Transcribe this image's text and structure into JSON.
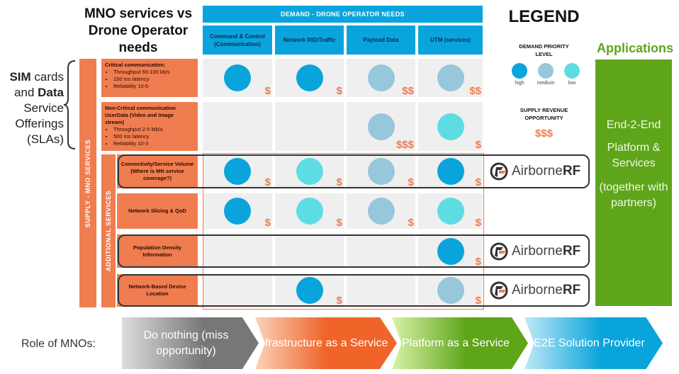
{
  "title": "MNO services vs Drone Operator needs",
  "demand_header": "DEMAND - DRONE OPERATOR NEEDS",
  "columns": [
    "Command & Control (Communication)",
    "Network RID/Traffic",
    "Payload Data",
    "UTM (services)"
  ],
  "left_label": {
    "line1_bold": "SIM",
    "line1": " cards",
    "line2": "and ",
    "line2_bold": "Data",
    "line3": "Service Offerings (SLAs)"
  },
  "supply_label": "SUPPLY - MNO SERVICES",
  "additional_label": "ADDITIONAL SERVICES",
  "rows": [
    {
      "title": "Critical communication:",
      "bullets": [
        "Throughput 50-100 kb/s",
        "150 ms latency",
        "Reliability 10-5"
      ],
      "cells": [
        {
          "p": "high",
          "d": "$"
        },
        {
          "p": "high",
          "d": "$"
        },
        {
          "p": "medium",
          "d": "$$"
        },
        {
          "p": "medium",
          "d": "$$"
        }
      ]
    },
    {
      "title": "Non-Critical communication UserData (Video and Image stream)",
      "bullets": [
        "Throughput 2-5 Mb/s",
        "500 ms latency",
        "Reliability 10-3"
      ],
      "cells": [
        null,
        null,
        {
          "p": "medium",
          "d": "$$$"
        },
        {
          "p": "low",
          "d": "$"
        }
      ]
    },
    {
      "title": "Connectivity/Service Volume (Where is MN service coverage?)",
      "cells": [
        {
          "p": "high",
          "d": "$"
        },
        {
          "p": "low",
          "d": "$"
        },
        {
          "p": "medium",
          "d": "$"
        },
        {
          "p": "high",
          "d": "$"
        }
      ]
    },
    {
      "title": "Network Slicing & QoD",
      "cells": [
        {
          "p": "high",
          "d": "$"
        },
        {
          "p": "low",
          "d": "$"
        },
        {
          "p": "medium",
          "d": "$"
        },
        {
          "p": "low",
          "d": "$"
        }
      ]
    },
    {
      "title": "Population Density Information",
      "cells": [
        null,
        null,
        null,
        {
          "p": "high",
          "d": "$"
        }
      ]
    },
    {
      "title": "Network-Based Device Location",
      "cells": [
        null,
        {
          "p": "high",
          "d": "$"
        },
        null,
        {
          "p": "medium",
          "d": "$"
        }
      ]
    }
  ],
  "colors": {
    "high": "#0aa4dc",
    "medium": "#96c7da",
    "low": "#5ddde3",
    "orange": "#ef7d4f",
    "green": "#5ea51a"
  },
  "legend": {
    "title": "LEGEND",
    "priority_title": "DEMAND PRIORITY LEVEL",
    "levels": [
      "high",
      "medium",
      "low"
    ],
    "revenue_title": "SUPPLY REVENUE OPPORTUNITY",
    "revenue_symbol": "$$$"
  },
  "partner": {
    "name_light": "Airborne",
    "name_bold": "RF"
  },
  "applications": {
    "title": "Applications",
    "line1": "End-2-End",
    "line2": "Platform & Services",
    "line3": "(together with partners)"
  },
  "roles": {
    "label": "Role of MNOs:",
    "steps": [
      "Do nothing (miss opportunity)",
      "Infrastructure as a Service",
      "Platform as a Service",
      "E2E Solution Provider"
    ]
  }
}
